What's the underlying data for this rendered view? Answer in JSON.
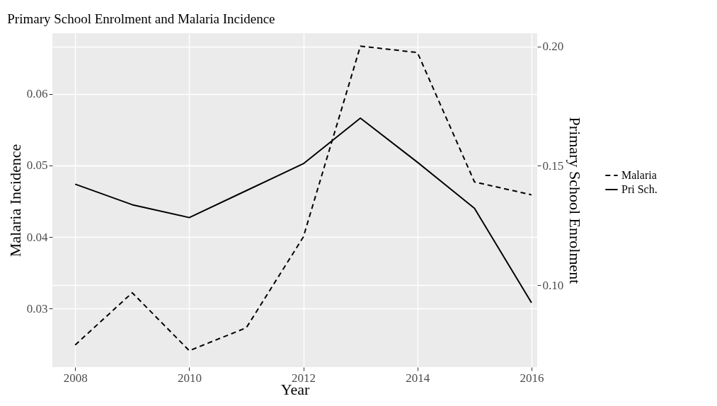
{
  "chart_data": {
    "type": "line",
    "title": "Primary School Enrolment and Malaria Incidence",
    "xlabel": "Year",
    "ylabel": "Malaria Incidence",
    "y2label": "Primary School Enrolment",
    "x": [
      2008,
      2009,
      2010,
      2011,
      2012,
      2013,
      2014,
      2015,
      2016
    ],
    "series": [
      {
        "name": "Malaria",
        "color": "#000000",
        "line_style": "dashed",
        "values": [
          0.0249,
          0.0322,
          0.0241,
          0.0273,
          0.04,
          0.0667,
          0.0658,
          0.0477,
          0.0459
        ]
      },
      {
        "name": "Pri Sch.",
        "color": "#000000",
        "line_style": "solid",
        "axis": "y2",
        "values": [
          0.1423,
          0.1337,
          0.1283,
          0.1396,
          0.1509,
          0.17,
          0.1515,
          0.1322,
          0.0926
        ]
      }
    ],
    "xlim": [
      2007.6,
      2016.1
    ],
    "xticks": [
      2008,
      2010,
      2012,
      2014,
      2016
    ],
    "ylim": [
      0.0218,
      0.0685
    ],
    "yticks": [
      0.03,
      0.04,
      0.05,
      0.06
    ],
    "y2lim": [
      0.0656,
      0.2056
    ],
    "y2ticks": [
      {
        "value": 0.1,
        "label": "0.10"
      },
      {
        "value": 0.15,
        "label": "0.15"
      },
      {
        "value": 0.2,
        "label": "0.20"
      }
    ],
    "grid": true,
    "legend": "right",
    "marker": "none"
  }
}
